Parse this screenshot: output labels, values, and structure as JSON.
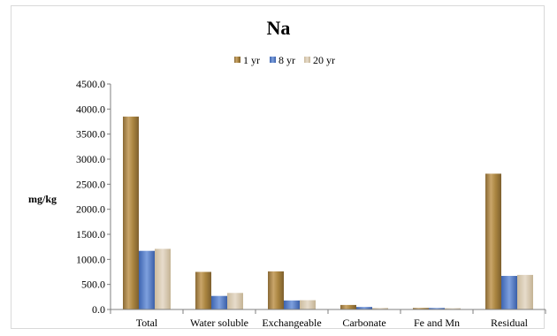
{
  "chart_data": {
    "type": "bar",
    "title": "Na",
    "ylabel": "mg/kg",
    "xlabel": "",
    "ylim": [
      0,
      4500
    ],
    "y_ticks": [
      "0.0",
      "500.0",
      "1000.0",
      "1500.0",
      "2000.0",
      "2500.0",
      "3000.0",
      "3500.0",
      "4000.0",
      "4500.0"
    ],
    "categories": [
      "Total",
      "Water soluble",
      "Exchangeable",
      "Carbonate",
      "Fe and Mn",
      "Residual"
    ],
    "legend_position": "top",
    "grid": false,
    "series": [
      {
        "name": "1 yr",
        "color": "#b08b4f",
        "values": [
          3850,
          750,
          760,
          90,
          30,
          2710
        ]
      },
      {
        "name": "8 yr",
        "color": "#4f7ac8",
        "values": [
          1170,
          270,
          180,
          50,
          30,
          670
        ]
      },
      {
        "name": "20 yr",
        "color": "#d6c7ad",
        "values": [
          1210,
          330,
          185,
          30,
          25,
          690
        ]
      }
    ]
  }
}
